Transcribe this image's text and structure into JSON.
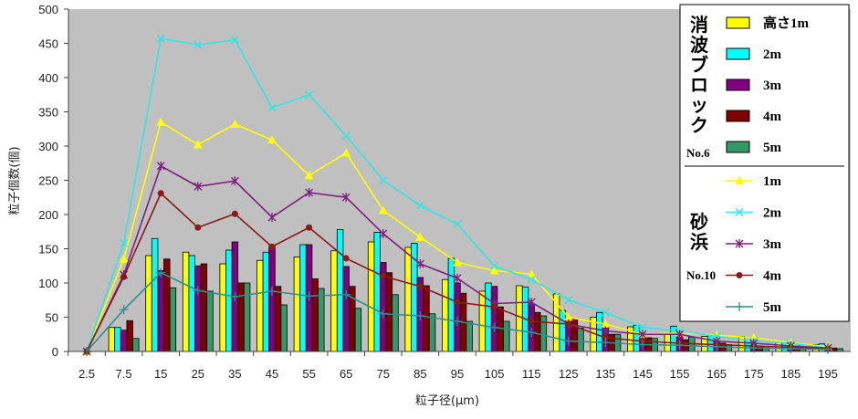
{
  "chart_data": {
    "type": "bar+line",
    "xlabel": "粒子径(μm)",
    "ylabel": "粒子個数(個)",
    "ylim": [
      0,
      500
    ],
    "yticks": [
      0,
      50,
      100,
      150,
      200,
      250,
      300,
      350,
      400,
      450,
      500
    ],
    "categories": [
      "2.5",
      "7.5",
      "15",
      "25",
      "35",
      "45",
      "55",
      "65",
      "75",
      "85",
      "95",
      "105",
      "115",
      "125",
      "135",
      "145",
      "155",
      "165",
      "175",
      "185",
      "195"
    ],
    "bar_group": {
      "title": "消波ブロック",
      "sub": "No.6"
    },
    "line_group": {
      "title": "砂浜",
      "sub": "No.10"
    },
    "bar_series": [
      {
        "name": "高さ1m",
        "color": "#ffff00",
        "values": [
          0,
          35,
          140,
          145,
          128,
          133,
          138,
          147,
          160,
          152,
          105,
          88,
          96,
          84,
          50,
          36,
          25,
          22,
          22,
          13,
          10
        ]
      },
      {
        "name": "2m",
        "color": "#00ffff",
        "values": [
          0,
          35,
          165,
          140,
          148,
          145,
          156,
          178,
          174,
          158,
          136,
          100,
          94,
          60,
          57,
          38,
          37,
          23,
          16,
          13,
          11
        ]
      },
      {
        "name": "3m",
        "color": "#800080",
        "values": [
          0,
          31,
          118,
          125,
          160,
          155,
          156,
          124,
          130,
          108,
          100,
          95,
          70,
          48,
          35,
          23,
          24,
          15,
          10,
          10,
          6
        ]
      },
      {
        "name": "4m",
        "color": "#800000",
        "values": [
          0,
          45,
          135,
          128,
          100,
          95,
          106,
          95,
          115,
          96,
          85,
          65,
          57,
          48,
          25,
          20,
          17,
          12,
          8,
          8,
          5
        ]
      },
      {
        "name": "5m",
        "color": "#339966",
        "values": [
          0,
          19,
          93,
          88,
          100,
          68,
          92,
          63,
          83,
          55,
          44,
          44,
          52,
          34,
          25,
          19,
          21,
          10,
          7,
          5,
          4
        ]
      }
    ],
    "line_series": [
      {
        "name": "1m",
        "color": "#ffff00",
        "marker": "triangle",
        "values": [
          0,
          135,
          335,
          302,
          332,
          309,
          257,
          290,
          206,
          167,
          130,
          118,
          113,
          50,
          40,
          25,
          27,
          24,
          20,
          13,
          7
        ]
      },
      {
        "name": "2m",
        "color": "#33e5e5",
        "marker": "x",
        "values": [
          0,
          158,
          457,
          448,
          455,
          356,
          375,
          315,
          250,
          213,
          186,
          125,
          105,
          75,
          57,
          35,
          30,
          22,
          15,
          12,
          5
        ]
      },
      {
        "name": "3m",
        "color": "#7f1f7f",
        "marker": "star",
        "values": [
          0,
          112,
          271,
          241,
          249,
          196,
          232,
          225,
          172,
          128,
          107,
          70,
          72,
          40,
          30,
          25,
          25,
          15,
          12,
          8,
          5
        ]
      },
      {
        "name": "4m",
        "color": "#8b1a1a",
        "marker": "circle",
        "values": [
          0,
          109,
          231,
          181,
          201,
          153,
          181,
          136,
          110,
          95,
          72,
          65,
          44,
          40,
          20,
          15,
          12,
          10,
          8,
          6,
          4
        ]
      },
      {
        "name": "5m",
        "color": "#2f8f8f",
        "marker": "plus",
        "values": [
          0,
          61,
          115,
          89,
          80,
          88,
          81,
          83,
          55,
          52,
          44,
          35,
          28,
          15,
          13,
          10,
          9,
          7,
          5,
          4,
          3
        ]
      }
    ]
  }
}
